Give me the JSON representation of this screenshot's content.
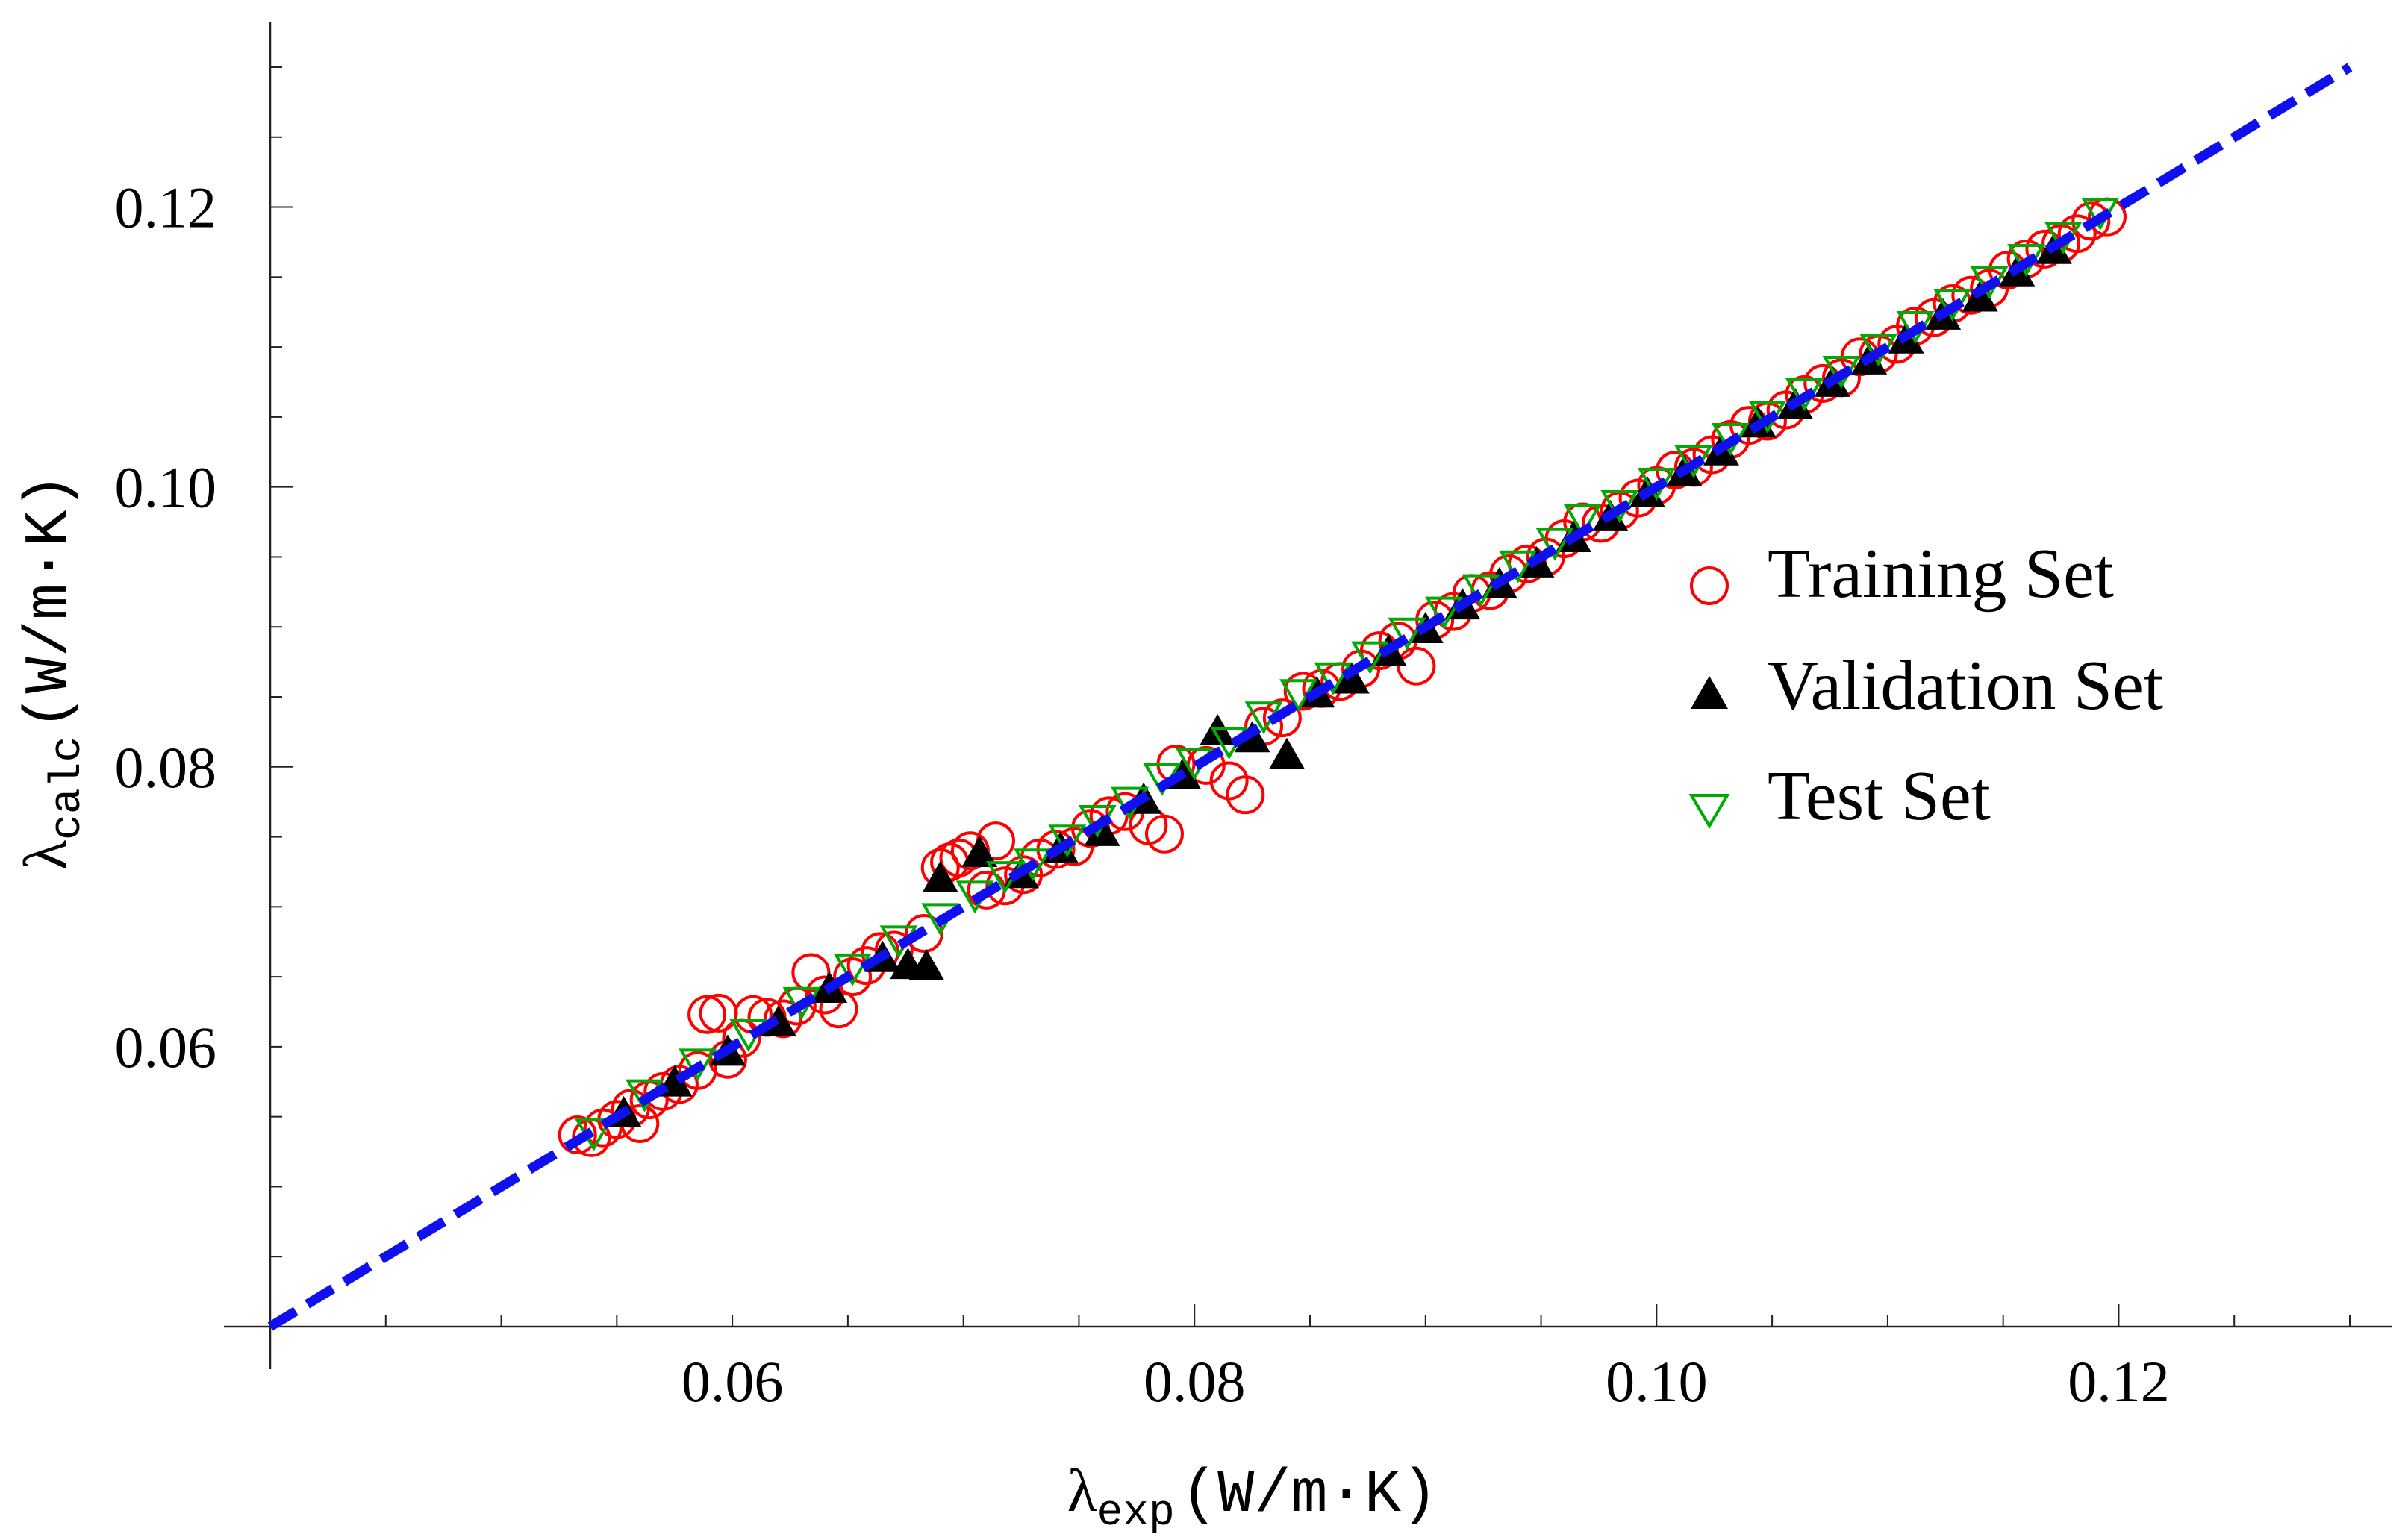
{
  "chart_data": {
    "type": "scatter",
    "title": "",
    "xlabel": {
      "symbol": "λ",
      "subscript": "exp",
      "units": "(W/m·K)"
    },
    "ylabel": {
      "symbol": "λ",
      "subscript": "calc",
      "units": "(W/m·K)"
    },
    "xlim": [
      0.04,
      0.13
    ],
    "ylim": [
      0.04,
      0.13
    ],
    "x_ticks": [
      {
        "value": 0.06,
        "label": "0.06"
      },
      {
        "value": 0.08,
        "label": "0.08"
      },
      {
        "value": 0.1,
        "label": "0.10"
      },
      {
        "value": 0.12,
        "label": "0.12"
      }
    ],
    "y_ticks": [
      {
        "value": 0.06,
        "label": "0.06"
      },
      {
        "value": 0.08,
        "label": "0.08"
      },
      {
        "value": 0.1,
        "label": "0.10"
      },
      {
        "value": 0.12,
        "label": "0.12"
      }
    ],
    "grid": false,
    "legend_position": "right-middle",
    "reference_line": {
      "name": "y = x",
      "color": "#1010ee",
      "style": "dashed"
    },
    "series": [
      {
        "name": "Training Set",
        "marker": "open-circle",
        "color": "#ff0000",
        "points": [
          [
            0.0533,
            0.0537
          ],
          [
            0.0539,
            0.0535
          ],
          [
            0.0544,
            0.0542
          ],
          [
            0.055,
            0.0548
          ],
          [
            0.0556,
            0.0556
          ],
          [
            0.056,
            0.0545
          ],
          [
            0.0564,
            0.0562
          ],
          [
            0.057,
            0.0568
          ],
          [
            0.0577,
            0.0573
          ],
          [
            0.0585,
            0.0583
          ],
          [
            0.0589,
            0.0623
          ],
          [
            0.0594,
            0.0624
          ],
          [
            0.0598,
            0.0591
          ],
          [
            0.0604,
            0.0606
          ],
          [
            0.0609,
            0.0623
          ],
          [
            0.0615,
            0.0621
          ],
          [
            0.0622,
            0.062
          ],
          [
            0.0628,
            0.0629
          ],
          [
            0.0634,
            0.0653
          ],
          [
            0.064,
            0.0637
          ],
          [
            0.0646,
            0.0627
          ],
          [
            0.0652,
            0.065
          ],
          [
            0.0658,
            0.0658
          ],
          [
            0.0664,
            0.0668
          ],
          [
            0.067,
            0.0669
          ],
          [
            0.0683,
            0.0681
          ],
          [
            0.069,
            0.0728
          ],
          [
            0.0694,
            0.0732
          ],
          [
            0.0698,
            0.0735
          ],
          [
            0.0703,
            0.074
          ],
          [
            0.071,
            0.0712
          ],
          [
            0.0714,
            0.0747
          ],
          [
            0.0718,
            0.0715
          ],
          [
            0.0726,
            0.0723
          ],
          [
            0.0733,
            0.0735
          ],
          [
            0.074,
            0.0741
          ],
          [
            0.0748,
            0.0743
          ],
          [
            0.0755,
            0.0756
          ],
          [
            0.0763,
            0.0765
          ],
          [
            0.077,
            0.0768
          ],
          [
            0.078,
            0.0758
          ],
          [
            0.0787,
            0.0752
          ],
          [
            0.0792,
            0.0802
          ],
          [
            0.0805,
            0.0801
          ],
          [
            0.0815,
            0.079
          ],
          [
            0.0822,
            0.078
          ],
          [
            0.083,
            0.0829
          ],
          [
            0.0838,
            0.0835
          ],
          [
            0.0847,
            0.0854
          ],
          [
            0.0855,
            0.0856
          ],
          [
            0.0863,
            0.0861
          ],
          [
            0.0872,
            0.087
          ],
          [
            0.088,
            0.0883
          ],
          [
            0.0888,
            0.089
          ],
          [
            0.0896,
            0.0872
          ],
          [
            0.0904,
            0.0905
          ],
          [
            0.0912,
            0.0911
          ],
          [
            0.092,
            0.0924
          ],
          [
            0.0928,
            0.0926
          ],
          [
            0.0936,
            0.0938
          ],
          [
            0.0944,
            0.0945
          ],
          [
            0.0952,
            0.095
          ],
          [
            0.096,
            0.0963
          ],
          [
            0.0968,
            0.0975
          ],
          [
            0.0976,
            0.0974
          ],
          [
            0.0984,
            0.0983
          ],
          [
            0.0992,
            0.0992
          ],
          [
            0.1,
            0.1001
          ],
          [
            0.1008,
            0.1012
          ],
          [
            0.1016,
            0.1014
          ],
          [
            0.1024,
            0.1023
          ],
          [
            0.1032,
            0.1034
          ],
          [
            0.104,
            0.1044
          ],
          [
            0.1048,
            0.1047
          ],
          [
            0.1056,
            0.1055
          ],
          [
            0.1064,
            0.1066
          ],
          [
            0.1072,
            0.1074
          ],
          [
            0.108,
            0.1078
          ],
          [
            0.1088,
            0.1093
          ],
          [
            0.1096,
            0.1095
          ],
          [
            0.1104,
            0.1102
          ],
          [
            0.1112,
            0.1115
          ],
          [
            0.112,
            0.1121
          ],
          [
            0.1128,
            0.1131
          ],
          [
            0.1136,
            0.1137
          ],
          [
            0.1144,
            0.1142
          ],
          [
            0.1152,
            0.1155
          ],
          [
            0.116,
            0.1163
          ],
          [
            0.1168,
            0.117
          ],
          [
            0.1175,
            0.1174
          ],
          [
            0.1182,
            0.1181
          ],
          [
            0.1188,
            0.119
          ],
          [
            0.1195,
            0.1193
          ]
        ]
      },
      {
        "name": "Validation Set",
        "marker": "filled-triangle-up",
        "color": "#000000",
        "points": [
          [
            0.0553,
            0.0552
          ],
          [
            0.0575,
            0.0574
          ],
          [
            0.0598,
            0.0596
          ],
          [
            0.062,
            0.0617
          ],
          [
            0.0642,
            0.0641
          ],
          [
            0.0665,
            0.0663
          ],
          [
            0.0676,
            0.0658
          ],
          [
            0.0684,
            0.0657
          ],
          [
            0.069,
            0.072
          ],
          [
            0.0707,
            0.0738
          ],
          [
            0.0725,
            0.0723
          ],
          [
            0.0742,
            0.0741
          ],
          [
            0.076,
            0.0753
          ],
          [
            0.0778,
            0.0776
          ],
          [
            0.0795,
            0.0794
          ],
          [
            0.081,
            0.0825
          ],
          [
            0.0825,
            0.082
          ],
          [
            0.084,
            0.0808
          ],
          [
            0.0853,
            0.0852
          ],
          [
            0.0868,
            0.0862
          ],
          [
            0.0884,
            0.0882
          ],
          [
            0.09,
            0.0898
          ],
          [
            0.0916,
            0.0915
          ],
          [
            0.0932,
            0.093
          ],
          [
            0.0948,
            0.0945
          ],
          [
            0.0964,
            0.0963
          ],
          [
            0.098,
            0.0978
          ],
          [
            0.0996,
            0.0995
          ],
          [
            0.1012,
            0.101
          ],
          [
            0.1028,
            0.1025
          ],
          [
            0.1044,
            0.1045
          ],
          [
            0.106,
            0.1058
          ],
          [
            0.1076,
            0.1074
          ],
          [
            0.1092,
            0.109
          ],
          [
            0.1108,
            0.1105
          ],
          [
            0.1124,
            0.1122
          ],
          [
            0.114,
            0.1135
          ],
          [
            0.1156,
            0.1153
          ],
          [
            0.1172,
            0.1169
          ]
        ]
      },
      {
        "name": "Test Set",
        "marker": "open-triangle-down",
        "color": "#00aa00",
        "points": [
          [
            0.054,
            0.0538
          ],
          [
            0.0562,
            0.0566
          ],
          [
            0.0585,
            0.0588
          ],
          [
            0.0607,
            0.0609
          ],
          [
            0.063,
            0.0632
          ],
          [
            0.0652,
            0.0656
          ],
          [
            0.0672,
            0.0676
          ],
          [
            0.069,
            0.0692
          ],
          [
            0.0705,
            0.0708
          ],
          [
            0.0718,
            0.0722
          ],
          [
            0.073,
            0.0731
          ],
          [
            0.0745,
            0.0748
          ],
          [
            0.0758,
            0.0762
          ],
          [
            0.0772,
            0.0775
          ],
          [
            0.0786,
            0.0792
          ],
          [
            0.08,
            0.0803
          ],
          [
            0.0815,
            0.0818
          ],
          [
            0.083,
            0.0836
          ],
          [
            0.0845,
            0.0852
          ],
          [
            0.086,
            0.0864
          ],
          [
            0.0876,
            0.0879
          ],
          [
            0.0892,
            0.0896
          ],
          [
            0.0908,
            0.0911
          ],
          [
            0.0924,
            0.0927
          ],
          [
            0.094,
            0.0944
          ],
          [
            0.0956,
            0.096
          ],
          [
            0.0968,
            0.0977
          ],
          [
            0.0984,
            0.0987
          ],
          [
            0.1,
            0.1003
          ],
          [
            0.1016,
            0.1019
          ],
          [
            0.1032,
            0.1035
          ],
          [
            0.1048,
            0.1051
          ],
          [
            0.1064,
            0.1067
          ],
          [
            0.108,
            0.1083
          ],
          [
            0.1096,
            0.1099
          ],
          [
            0.1112,
            0.1115
          ],
          [
            0.1128,
            0.1131
          ],
          [
            0.1144,
            0.1147
          ],
          [
            0.116,
            0.1163
          ],
          [
            0.1176,
            0.1179
          ],
          [
            0.1192,
            0.1196
          ]
        ]
      }
    ]
  }
}
